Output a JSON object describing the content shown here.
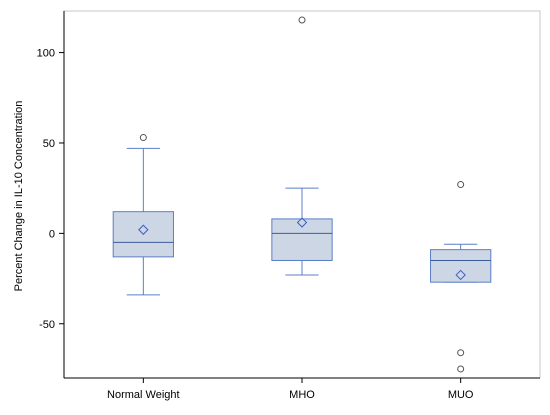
{
  "chart_data": {
    "type": "boxplot",
    "title": "",
    "xlabel": "",
    "ylabel": "Percent Change in IL-10 Concentration",
    "ylim": [
      -80,
      123
    ],
    "yticks": [
      -50,
      0,
      50,
      100
    ],
    "ytick_labels": [
      "-50",
      "0",
      "50",
      "100"
    ],
    "grid": false,
    "legend": "none",
    "categories": [
      "Normal Weight",
      "MHO",
      "MUO"
    ],
    "groups": [
      {
        "category": "Normal Weight",
        "whisker_low": -34,
        "q1": -13,
        "median": -5,
        "q3": 12,
        "whisker_high": 47,
        "mean": 2,
        "outliers": [
          53
        ]
      },
      {
        "category": "MHO",
        "whisker_low": -23,
        "q1": -15,
        "median": 0,
        "q3": 8,
        "whisker_high": 25,
        "mean": 6,
        "outliers": [
          118
        ]
      },
      {
        "category": "MUO",
        "whisker_low": -27,
        "q1": -27,
        "median": -15,
        "q3": -9,
        "whisker_high": -6,
        "mean": -23,
        "outliers": [
          27,
          -66,
          -75
        ]
      }
    ],
    "colors": {
      "box_fill": "#cdd6e4",
      "box_stroke": "#5b7fc4",
      "median_stroke": "#3a5a9a",
      "whisker_stroke": "#5b7fc4",
      "mean_marker": "#3b5fc4",
      "outlier_marker": "#555555",
      "frame": "#c8c8c8",
      "axis": "#000000"
    }
  }
}
